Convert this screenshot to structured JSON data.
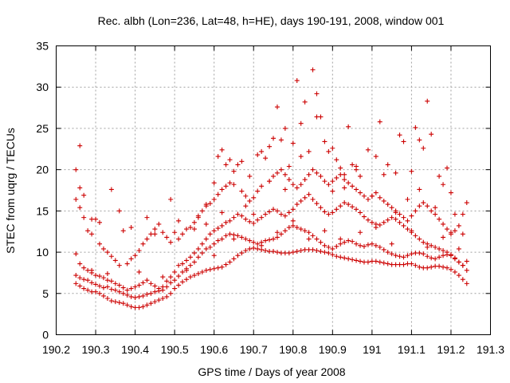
{
  "chart_data": {
    "type": "scatter",
    "title": "Rec. albh (Lon=236, Lat=48, h=HE), days 190-191, 2008, window 001",
    "xlabel": "GPS time / Days of year 2008",
    "ylabel": "STEC from uqrg / TECUs",
    "xlim": [
      190.2,
      191.3
    ],
    "ylim": [
      0,
      35
    ],
    "xticks": [
      190.2,
      190.3,
      190.4,
      190.5,
      190.6,
      190.7,
      190.8,
      190.9,
      191,
      191.1,
      191.2,
      191.3
    ],
    "xtick_labels": [
      "190.2",
      "190.3",
      "190.4",
      "190.5",
      "190.6",
      "190.7",
      "190.8",
      "190.9",
      "191",
      "191.1",
      "191.2",
      "191.3"
    ],
    "yticks": [
      0,
      5,
      10,
      15,
      20,
      25,
      30,
      35
    ],
    "ytick_labels": [
      "0",
      "5",
      "10",
      "15",
      "20",
      "25",
      "30",
      "35"
    ],
    "grid": true,
    "marker": "plus",
    "color": "#cc0000",
    "series": [
      {
        "x": [
          190.25,
          190.26,
          190.27,
          190.28,
          190.29,
          190.3,
          190.31,
          190.32,
          190.33,
          190.34,
          190.35,
          190.36,
          190.37,
          190.38,
          190.39,
          190.4,
          190.41,
          190.42,
          190.43,
          190.44,
          190.45,
          190.46,
          190.47,
          190.48,
          190.49,
          190.5,
          190.51,
          190.52,
          190.53,
          190.54,
          190.55,
          190.56,
          190.57,
          190.58,
          190.59,
          190.6,
          190.61,
          190.62,
          190.63,
          190.64,
          190.65,
          190.66,
          190.67,
          190.68,
          190.69,
          190.7,
          190.71,
          190.72,
          190.73,
          190.74,
          190.75,
          190.76,
          190.77,
          190.78,
          190.79,
          190.8,
          190.81,
          190.82,
          190.83,
          190.84,
          190.85,
          190.86,
          190.87,
          190.88,
          190.89,
          190.9,
          190.91,
          190.92,
          190.93,
          190.94,
          190.95,
          190.96,
          190.97,
          190.98,
          190.99,
          191.0,
          191.01,
          191.02,
          191.03,
          191.04,
          191.05,
          191.06,
          191.07,
          191.08,
          191.09,
          191.1,
          191.11,
          191.12,
          191.13,
          191.14,
          191.15,
          191.16,
          191.17,
          191.18,
          191.19,
          191.2,
          191.21,
          191.22,
          191.23,
          191.24
        ],
        "y": [
          6.2,
          5.9,
          5.6,
          5.4,
          5.2,
          5.2,
          5.0,
          4.7,
          4.4,
          4.1,
          4.0,
          3.9,
          3.8,
          3.6,
          3.4,
          3.3,
          3.3,
          3.4,
          3.6,
          3.8,
          4.0,
          4.2,
          4.4,
          4.6,
          5.0,
          5.6,
          6.0,
          6.4,
          6.7,
          7.0,
          7.2,
          7.4,
          7.6,
          7.8,
          7.9,
          8.0,
          8.1,
          8.2,
          8.5,
          8.8,
          9.2,
          9.6,
          9.9,
          10.2,
          10.4,
          10.5,
          10.4,
          10.3,
          10.2,
          10.1,
          10.1,
          10.0,
          9.9,
          9.9,
          9.9,
          10.0,
          10.1,
          10.2,
          10.3,
          10.3,
          10.3,
          10.2,
          10.1,
          10.0,
          9.9,
          9.7,
          9.5,
          9.4,
          9.3,
          9.2,
          9.1,
          9.0,
          8.9,
          8.8,
          8.8,
          8.9,
          8.9,
          8.8,
          8.7,
          8.6,
          8.5,
          8.5,
          8.5,
          8.5,
          8.6,
          8.6,
          8.4,
          8.2,
          8.1,
          8.1,
          8.2,
          8.3,
          8.3,
          8.2,
          8.1,
          7.9,
          7.6,
          7.2,
          6.7,
          6.2
        ]
      },
      {
        "x": [
          190.25,
          190.26,
          190.27,
          190.28,
          190.29,
          190.3,
          190.31,
          190.32,
          190.33,
          190.34,
          190.35,
          190.36,
          190.37,
          190.38,
          190.39,
          190.4,
          190.41,
          190.42,
          190.43,
          190.44,
          190.45,
          190.46,
          190.47,
          190.48,
          190.49,
          190.5,
          190.51,
          190.52,
          190.53,
          190.54,
          190.55,
          190.56,
          190.57,
          190.58,
          190.59,
          190.6,
          190.61,
          190.62,
          190.63,
          190.64,
          190.65,
          190.66,
          190.67,
          190.68,
          190.69,
          190.7,
          190.71,
          190.72,
          190.73,
          190.74,
          190.75,
          190.76,
          190.77,
          190.78,
          190.79,
          190.8,
          190.81,
          190.82,
          190.83,
          190.84,
          190.85,
          190.86,
          190.87,
          190.88,
          190.89,
          190.9,
          190.91,
          190.92,
          190.93,
          190.94,
          190.95,
          190.96,
          190.97,
          190.98,
          190.99,
          191.0,
          191.01,
          191.02,
          191.03,
          191.04,
          191.05,
          191.06,
          191.07,
          191.08,
          191.09,
          191.1,
          191.11,
          191.12,
          191.13,
          191.14,
          191.15,
          191.16,
          191.17,
          191.18,
          191.19,
          191.2,
          191.21,
          191.22,
          191.23,
          191.24
        ],
        "y": [
          7.2,
          6.9,
          6.7,
          6.6,
          6.3,
          6.1,
          5.9,
          5.7,
          5.8,
          5.5,
          5.4,
          5.2,
          5.0,
          4.8,
          4.6,
          4.5,
          4.6,
          4.7,
          4.9,
          5.0,
          5.2,
          5.3,
          5.4,
          5.8,
          6.3,
          6.6,
          7.1,
          7.6,
          8.0,
          8.4,
          8.8,
          9.4,
          9.9,
          10.4,
          10.6,
          11.0,
          11.4,
          11.6,
          12.0,
          12.2,
          12.1,
          12.0,
          11.8,
          11.6,
          11.4,
          11.2,
          11.0,
          11.2,
          11.4,
          11.5,
          11.6,
          11.8,
          12.2,
          12.6,
          13.0,
          13.2,
          13.0,
          12.8,
          12.6,
          12.4,
          12.0,
          11.6,
          11.2,
          10.8,
          10.6,
          10.4,
          10.7,
          11.0,
          11.2,
          11.4,
          11.3,
          11.0,
          10.8,
          10.7,
          10.9,
          11.0,
          10.8,
          10.6,
          10.3,
          10.0,
          9.8,
          9.6,
          9.5,
          9.4,
          9.6,
          9.8,
          9.9,
          9.9,
          9.8,
          9.5,
          9.3,
          9.2,
          9.4,
          9.6,
          9.7,
          9.6,
          9.3,
          8.8,
          8.4,
          7.8
        ]
      },
      {
        "x": [
          190.25,
          190.26,
          190.27,
          190.28,
          190.29,
          190.3,
          190.31,
          190.32,
          190.33,
          190.34,
          190.35,
          190.36,
          190.37,
          190.38,
          190.39,
          190.4,
          190.41,
          190.42,
          190.43,
          190.44,
          190.45,
          190.46,
          190.47,
          190.48,
          190.49,
          190.5,
          190.51,
          190.52,
          190.53,
          190.54,
          190.55,
          190.56,
          190.57,
          190.58,
          190.59,
          190.6,
          190.61,
          190.62,
          190.63,
          190.64,
          190.65,
          190.66,
          190.67,
          190.68,
          190.69,
          190.7,
          190.71,
          190.72,
          190.73,
          190.74,
          190.75,
          190.76,
          190.77,
          190.78,
          190.79,
          190.8,
          190.81,
          190.82,
          190.83,
          190.84,
          190.85,
          190.86,
          190.87,
          190.88,
          190.89,
          190.9,
          190.91,
          190.92,
          190.93,
          190.94,
          190.95,
          190.96,
          190.97,
          190.98,
          190.99,
          191.0,
          191.01,
          191.02,
          191.03,
          191.04,
          191.05,
          191.06,
          191.07,
          191.08,
          191.09,
          191.1,
          191.11,
          191.12,
          191.13,
          191.14,
          191.15,
          191.16,
          191.17,
          191.18,
          191.19,
          191.2,
          191.21,
          191.22,
          191.23,
          191.24
        ],
        "y": [
          9.8,
          8.6,
          8.1,
          7.8,
          7.5,
          7.2,
          7.1,
          6.9,
          6.6,
          6.5,
          6.2,
          6.0,
          5.7,
          5.4,
          5.6,
          5.8,
          6.0,
          6.3,
          6.6,
          6.2,
          5.9,
          5.6,
          5.8,
          6.5,
          7.0,
          7.6,
          8.4,
          8.6,
          9.0,
          9.4,
          9.9,
          10.4,
          11.0,
          11.6,
          12.2,
          12.6,
          12.9,
          13.2,
          13.6,
          13.8,
          14.2,
          14.6,
          14.4,
          14.0,
          13.7,
          13.5,
          13.9,
          14.2,
          14.6,
          14.9,
          15.2,
          15.0,
          14.6,
          14.4,
          14.8,
          15.2,
          15.8,
          16.2,
          16.6,
          17.0,
          16.4,
          15.9,
          15.4,
          14.9,
          14.6,
          14.8,
          15.2,
          15.6,
          16.0,
          15.8,
          15.5,
          15.2,
          14.8,
          14.3,
          13.9,
          13.6,
          13.4,
          13.3,
          13.6,
          13.9,
          14.2,
          14.0,
          13.6,
          13.2,
          12.8,
          12.4,
          12.0,
          11.6,
          11.2,
          11.0,
          10.8,
          10.6,
          10.4,
          10.2,
          10.0,
          9.7,
          9.2,
          8.8,
          8.4,
          8.9
        ]
      },
      {
        "x": [
          190.25,
          190.26,
          190.27,
          190.28,
          190.29,
          190.31,
          190.32,
          190.33,
          190.34,
          190.35,
          190.36,
          190.38,
          190.39,
          190.4,
          190.41,
          190.42,
          190.43,
          190.44,
          190.45,
          190.47,
          190.48,
          190.49,
          190.51,
          190.52,
          190.53,
          190.55,
          190.56,
          190.57,
          190.58,
          190.59,
          190.6,
          190.61,
          190.62,
          190.63,
          190.64,
          190.65,
          190.67,
          190.68,
          190.69,
          190.7,
          190.71,
          190.72,
          190.74,
          190.75,
          190.76,
          190.77,
          190.78,
          190.79,
          190.8,
          190.81,
          190.82,
          190.83,
          190.84,
          190.85,
          190.86,
          190.87,
          190.88,
          190.89,
          190.9,
          190.91,
          190.92,
          190.93,
          190.94,
          190.95,
          190.96,
          190.97,
          190.98,
          190.99,
          191.0,
          191.01,
          191.02,
          191.03,
          191.04,
          191.05,
          191.06,
          191.07,
          191.08,
          191.09,
          191.1,
          191.11,
          191.12,
          191.13,
          191.14,
          191.15,
          191.16,
          191.17,
          191.18,
          191.19,
          191.2,
          191.21,
          191.22,
          191.23,
          191.24
        ],
        "y": [
          16.4,
          15.4,
          14.2,
          12.6,
          12.2,
          11.0,
          10.4,
          10.0,
          9.5,
          9.0,
          8.4,
          8.6,
          9.2,
          9.6,
          10.2,
          11.0,
          11.6,
          12.2,
          12.8,
          12.4,
          11.8,
          11.2,
          11.6,
          12.2,
          12.8,
          13.6,
          14.4,
          15.0,
          15.6,
          15.9,
          16.4,
          17.0,
          17.6,
          18.0,
          18.4,
          18.2,
          17.4,
          16.8,
          16.2,
          16.6,
          17.4,
          18.0,
          18.6,
          19.2,
          19.6,
          20.0,
          19.4,
          18.8,
          18.2,
          17.8,
          18.2,
          18.8,
          19.4,
          20.0,
          19.6,
          19.2,
          18.6,
          18.2,
          18.6,
          19.0,
          19.4,
          18.8,
          18.4,
          18.0,
          17.6,
          17.2,
          16.8,
          16.4,
          16.8,
          17.2,
          16.6,
          16.2,
          15.8,
          15.4,
          15.0,
          14.6,
          14.2,
          13.8,
          14.4,
          15.0,
          15.6,
          16.0,
          15.6,
          15.0,
          14.6,
          14.0,
          13.4,
          12.8,
          12.2,
          12.6,
          13.2,
          14.6,
          16.0
        ]
      },
      {
        "x": [
          190.25,
          190.26,
          190.27,
          190.29,
          190.31,
          190.34,
          190.36,
          190.39,
          190.43,
          190.46,
          190.49,
          190.51,
          190.54,
          190.56,
          190.58,
          190.6,
          190.61,
          190.62,
          190.63,
          190.64,
          190.65,
          190.66,
          190.67,
          190.69,
          190.71,
          190.72,
          190.73,
          190.74,
          190.75,
          190.76,
          190.77,
          190.78,
          190.79,
          190.8,
          190.81,
          190.82,
          190.83,
          190.84,
          190.85,
          190.86,
          190.87,
          190.88,
          190.89,
          190.9,
          190.91,
          190.92,
          190.93,
          190.94,
          190.95,
          190.96,
          190.97,
          190.99,
          191.01,
          191.02,
          191.04,
          191.06,
          191.07,
          191.08,
          191.1,
          191.11,
          191.12,
          191.13,
          191.14,
          191.15,
          191.17,
          191.18,
          191.19,
          191.2,
          191.21
        ],
        "y": [
          20.0,
          17.8,
          16.9,
          14.0,
          13.6,
          17.6,
          15.0,
          13.0,
          14.2,
          13.4,
          16.4,
          13.8,
          13.0,
          14.2,
          15.8,
          18.4,
          21.6,
          22.4,
          20.6,
          21.2,
          19.8,
          20.6,
          21.0,
          19.2,
          21.8,
          22.2,
          21.4,
          22.8,
          23.8,
          27.6,
          23.6,
          25.0,
          20.4,
          23.2,
          30.8,
          25.6,
          28.2,
          22.2,
          32.1,
          29.2,
          26.4,
          23.4,
          22.2,
          22.6,
          21.2,
          20.2,
          19.4,
          25.2,
          20.6,
          20.0,
          19.2,
          22.4,
          21.6,
          25.8,
          20.6,
          19.6,
          24.2,
          23.4,
          19.8,
          25.1,
          23.6,
          22.6,
          28.3,
          24.3,
          19.2,
          18.2,
          20.2,
          17.2,
          14.6
        ]
      },
      {
        "x": [
          190.26,
          190.3,
          190.37,
          190.45,
          190.5,
          190.55,
          190.58,
          190.62,
          190.68,
          190.7,
          190.74,
          190.78,
          190.82,
          190.86,
          190.9,
          190.93,
          190.96,
          191.0,
          191.03,
          191.06,
          191.09,
          191.12,
          191.16,
          191.2,
          191.23
        ],
        "y": [
          22.9,
          14.0,
          12.6,
          12.2,
          12.4,
          12.8,
          13.4,
          14.8,
          15.6,
          14.6,
          18.6,
          17.6,
          21.6,
          26.4,
          17.4,
          17.8,
          20.4,
          16.8,
          19.4,
          14.8,
          16.4,
          17.6,
          15.4,
          12.4,
          12.2
        ]
      },
      {
        "x": [
          190.29,
          190.33,
          190.41,
          190.47,
          190.53,
          190.6,
          190.65,
          190.72,
          190.76,
          190.8,
          190.84,
          190.88,
          190.92,
          190.97,
          191.01,
          191.05,
          191.1,
          191.14,
          191.18,
          191.22
        ],
        "y": [
          7.8,
          7.4,
          7.6,
          7.0,
          7.8,
          9.6,
          11.6,
          10.8,
          12.4,
          13.8,
          11.6,
          12.6,
          11.6,
          12.4,
          13.0,
          11.0,
          12.6,
          10.6,
          11.8,
          10.4
        ]
      }
    ]
  }
}
